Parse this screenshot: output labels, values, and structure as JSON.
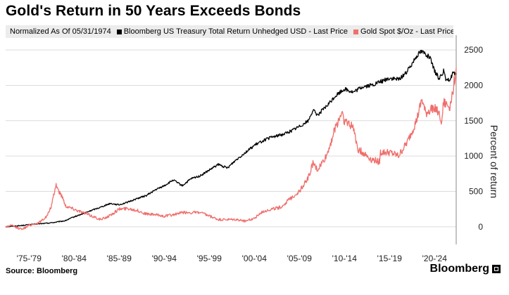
{
  "title": "Gold's Return in 50 Years Exceeds Bonds",
  "legend": {
    "note": "Normalized As Of 05/31/1974",
    "items": [
      {
        "label": "Bloomberg US Treasury Total Return Unhedged USD - Last Price",
        "color": "#000000"
      },
      {
        "label": "Gold Spot $/Oz - Last Price",
        "color": "#ef6f6c"
      }
    ]
  },
  "source": "Source: Bloomberg",
  "brand": "Bloomberg",
  "chart_data": {
    "type": "line",
    "ylabel": "Percent of return",
    "yticks": [
      0,
      500,
      1000,
      1500,
      2000,
      2500
    ],
    "ylim": [
      -250,
      2650
    ],
    "xlim": [
      1974.4,
      2024.4
    ],
    "x_tick_labels": [
      "'75-'79",
      "'80-'84",
      "'85-'89",
      "'90-'94",
      "'95-'99",
      "'00-'04",
      "'05-'09",
      "'10-'14",
      "'15-'19",
      "'20-'24"
    ],
    "y_axis_side": "right",
    "grid": "horizontal",
    "series": [
      {
        "name": "Bloomberg US Treasury Total Return Unhedged USD - Last Price",
        "color": "#000000",
        "x": [
          1974.4,
          1976,
          1977,
          1978,
          1979,
          1980,
          1981,
          1982,
          1983,
          1984,
          1985,
          1986,
          1987,
          1988,
          1989,
          1990,
          1991,
          1992,
          1993,
          1994,
          1995,
          1996,
          1997,
          1998,
          1999,
          2000,
          2001,
          2002,
          2003,
          2004,
          2005,
          2006,
          2007,
          2008,
          2008.5,
          2009,
          2010,
          2011,
          2012,
          2013,
          2014,
          2015,
          2016,
          2017,
          2018,
          2019,
          2020,
          2020.5,
          2021,
          2021.5,
          2022,
          2022.5,
          2023,
          2023.3,
          2023.8,
          2024,
          2024.4
        ],
        "y": [
          0,
          15,
          30,
          40,
          50,
          65,
          85,
          140,
          185,
          235,
          280,
          330,
          310,
          350,
          400,
          440,
          520,
          580,
          660,
          580,
          680,
          720,
          800,
          880,
          830,
          950,
          1050,
          1150,
          1220,
          1270,
          1300,
          1350,
          1420,
          1500,
          1650,
          1580,
          1700,
          1850,
          1950,
          1900,
          1980,
          2000,
          2050,
          2100,
          2080,
          2200,
          2420,
          2480,
          2450,
          2380,
          2200,
          2100,
          2200,
          2050,
          2100,
          2180,
          2150
        ]
      },
      {
        "name": "Gold Spot $/Oz - Last Price",
        "color": "#ef6f6c",
        "x": [
          1974.4,
          1975,
          1976,
          1976.5,
          1977,
          1978,
          1979,
          1979.5,
          1980,
          1980.3,
          1980.8,
          1981,
          1982,
          1983,
          1984,
          1985,
          1986,
          1987,
          1988,
          1989,
          1990,
          1991,
          1992,
          1993,
          1994,
          1995,
          1996,
          1997,
          1998,
          1999,
          2000,
          2001,
          2002,
          2003,
          2004,
          2005,
          2006,
          2007,
          2008,
          2008.5,
          2009,
          2010,
          2011,
          2011.7,
          2012,
          2013,
          2013.5,
          2014,
          2015,
          2015.9,
          2016,
          2017,
          2018,
          2019,
          2020,
          2020.6,
          2021,
          2022,
          2022.8,
          2023,
          2023.7,
          2024,
          2024.4
        ],
        "y": [
          0,
          20,
          -30,
          -20,
          20,
          50,
          150,
          300,
          600,
          500,
          400,
          300,
          250,
          200,
          150,
          100,
          160,
          250,
          260,
          230,
          180,
          170,
          150,
          170,
          200,
          200,
          200,
          150,
          100,
          100,
          100,
          80,
          120,
          220,
          250,
          280,
          400,
          500,
          700,
          900,
          800,
          1000,
          1400,
          1620,
          1500,
          1400,
          1100,
          1050,
          950,
          920,
          1050,
          1050,
          1000,
          1200,
          1500,
          1800,
          1600,
          1700,
          1500,
          1750,
          1700,
          1900,
          2250
        ]
      }
    ]
  }
}
